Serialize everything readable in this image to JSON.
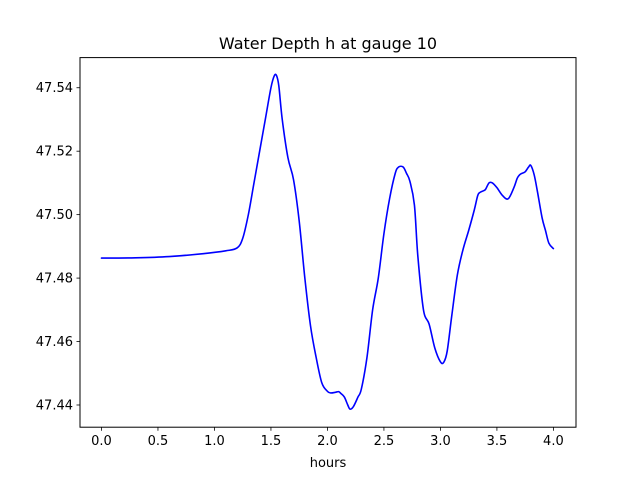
{
  "chart_data": {
    "type": "line",
    "title": "Water Depth h at gauge 10",
    "xlabel": "hours",
    "ylabel": "",
    "xlim": [
      -0.19,
      4.2
    ],
    "ylim": [
      47.433,
      47.5495
    ],
    "xticks": [
      0.0,
      0.5,
      1.0,
      1.5,
      2.0,
      2.5,
      3.0,
      3.5,
      4.0
    ],
    "xtick_labels": [
      "0.0",
      "0.5",
      "1.0",
      "1.5",
      "2.0",
      "2.5",
      "3.0",
      "3.5",
      "4.0"
    ],
    "yticks": [
      47.44,
      47.46,
      47.48,
      47.5,
      47.52,
      47.54
    ],
    "ytick_labels": [
      "47.44",
      "47.46",
      "47.48",
      "47.50",
      "47.52",
      "47.54"
    ],
    "grid": false,
    "series": [
      {
        "color": "#0000ff",
        "x": [
          0.0,
          0.3,
          0.6,
          0.9,
          1.1,
          1.2,
          1.25,
          1.3,
          1.35,
          1.4,
          1.45,
          1.5,
          1.53,
          1.55,
          1.57,
          1.6,
          1.65,
          1.7,
          1.75,
          1.8,
          1.85,
          1.9,
          1.95,
          2.0,
          2.03,
          2.07,
          2.1,
          2.12,
          2.15,
          2.18,
          2.2,
          2.23,
          2.27,
          2.3,
          2.35,
          2.4,
          2.45,
          2.5,
          2.55,
          2.6,
          2.63,
          2.67,
          2.7,
          2.73,
          2.77,
          2.8,
          2.85,
          2.9,
          2.95,
          3.0,
          3.03,
          3.06,
          3.1,
          3.15,
          3.2,
          3.25,
          3.3,
          3.33,
          3.35,
          3.38,
          3.4,
          3.43,
          3.46,
          3.5,
          3.55,
          3.6,
          3.65,
          3.68,
          3.7,
          3.72,
          3.75,
          3.78,
          3.8,
          3.83,
          3.86,
          3.9,
          3.93,
          3.96,
          4.0
        ],
        "y": [
          47.4863,
          47.4864,
          47.4868,
          47.4877,
          47.4886,
          47.4895,
          47.4925,
          47.5,
          47.51,
          47.52,
          47.53,
          47.54,
          47.5438,
          47.5438,
          47.5405,
          47.53,
          47.518,
          47.511,
          47.498,
          47.48,
          47.465,
          47.455,
          47.447,
          47.4443,
          47.4438,
          47.444,
          47.4442,
          47.4436,
          47.4425,
          47.44,
          47.4387,
          47.4395,
          47.4425,
          47.445,
          47.455,
          47.47,
          47.48,
          47.494,
          47.505,
          47.513,
          47.515,
          47.515,
          47.513,
          47.5105,
          47.503,
          47.487,
          47.47,
          47.4655,
          47.458,
          47.4536,
          47.4535,
          47.457,
          47.468,
          47.481,
          47.489,
          47.495,
          47.5015,
          47.506,
          47.507,
          47.5075,
          47.508,
          47.51,
          47.51,
          47.5085,
          47.506,
          47.505,
          47.5085,
          47.5115,
          47.5125,
          47.513,
          47.5135,
          47.515,
          47.5155,
          47.5125,
          47.507,
          47.499,
          47.495,
          47.491,
          47.4893
        ]
      }
    ]
  }
}
